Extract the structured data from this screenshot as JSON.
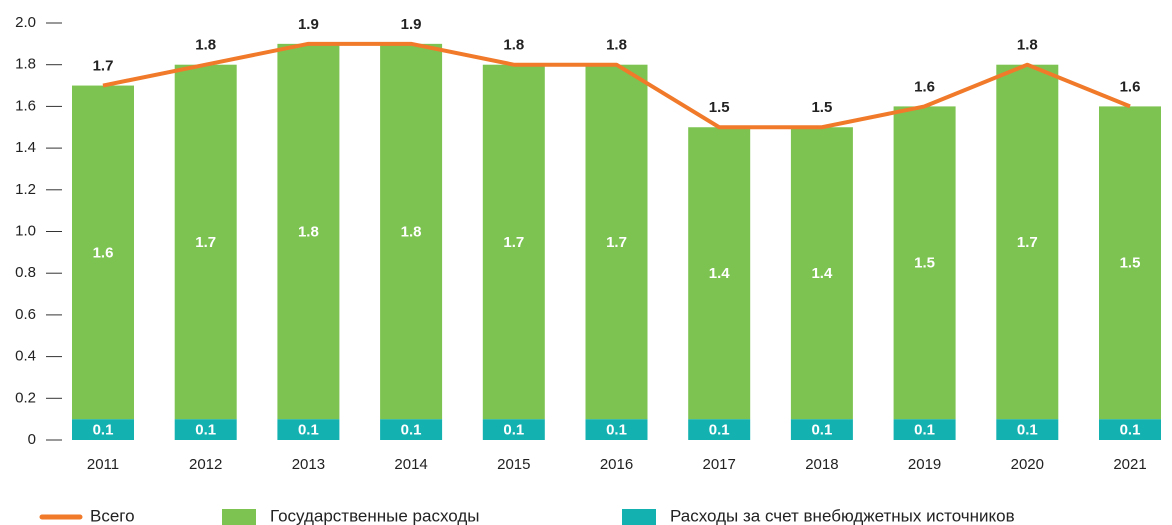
{
  "chart_data": {
    "type": "bar",
    "stacked": true,
    "categories": [
      "2011",
      "2012",
      "2013",
      "2014",
      "2015",
      "2016",
      "2017",
      "2018",
      "2019",
      "2020",
      "2021"
    ],
    "series": [
      {
        "name": "Всего",
        "type": "line",
        "color": "#f07a2a",
        "values": [
          1.7,
          1.8,
          1.9,
          1.9,
          1.8,
          1.8,
          1.5,
          1.5,
          1.6,
          1.8,
          1.6
        ]
      },
      {
        "name": "Государственные  расходы",
        "type": "bar",
        "color": "#7dc352",
        "values": [
          1.6,
          1.7,
          1.8,
          1.8,
          1.7,
          1.7,
          1.4,
          1.4,
          1.5,
          1.7,
          1.5
        ]
      },
      {
        "name": "Расходы за счет внебюджетных источников",
        "type": "bar",
        "color": "#14b1b1",
        "values": [
          0.1,
          0.1,
          0.1,
          0.1,
          0.1,
          0.1,
          0.1,
          0.1,
          0.1,
          0.1,
          0.1
        ]
      }
    ],
    "ylim": [
      0,
      2
    ],
    "yticks": [
      0,
      0.2,
      0.4,
      0.6,
      0.8,
      {
        "value": 1,
        "label": "1.0"
      },
      1.2,
      1.4,
      1.6,
      1.8,
      {
        "value": 2,
        "label": "2.0"
      }
    ]
  }
}
